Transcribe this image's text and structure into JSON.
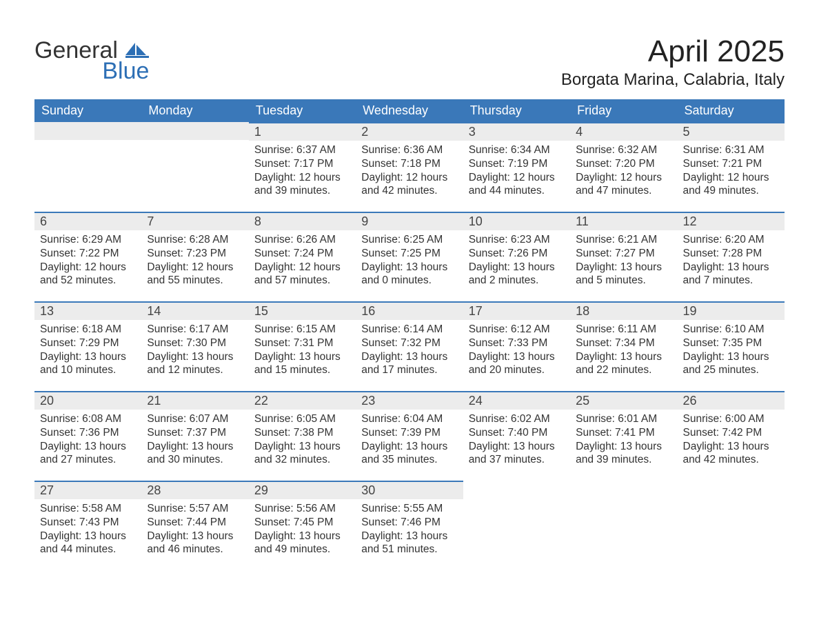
{
  "logo": {
    "word1": "General",
    "word2": "Blue"
  },
  "title": "April 2025",
  "location": "Borgata Marina, Calabria, Italy",
  "colors": {
    "header_bg": "#3a78b9",
    "header_text": "#ffffff",
    "daynum_bg": "#ececec",
    "row_border": "#3a78b9",
    "body_text": "#333333",
    "page_bg": "#ffffff",
    "logo_blue": "#2d6fb5"
  },
  "day_headers": [
    "Sunday",
    "Monday",
    "Tuesday",
    "Wednesday",
    "Thursday",
    "Friday",
    "Saturday"
  ],
  "weeks": [
    [
      {
        "n": "",
        "sr": "",
        "ss": "",
        "dl": ""
      },
      {
        "n": "",
        "sr": "",
        "ss": "",
        "dl": ""
      },
      {
        "n": "1",
        "sr": "Sunrise: 6:37 AM",
        "ss": "Sunset: 7:17 PM",
        "dl": "Daylight: 12 hours and 39 minutes."
      },
      {
        "n": "2",
        "sr": "Sunrise: 6:36 AM",
        "ss": "Sunset: 7:18 PM",
        "dl": "Daylight: 12 hours and 42 minutes."
      },
      {
        "n": "3",
        "sr": "Sunrise: 6:34 AM",
        "ss": "Sunset: 7:19 PM",
        "dl": "Daylight: 12 hours and 44 minutes."
      },
      {
        "n": "4",
        "sr": "Sunrise: 6:32 AM",
        "ss": "Sunset: 7:20 PM",
        "dl": "Daylight: 12 hours and 47 minutes."
      },
      {
        "n": "5",
        "sr": "Sunrise: 6:31 AM",
        "ss": "Sunset: 7:21 PM",
        "dl": "Daylight: 12 hours and 49 minutes."
      }
    ],
    [
      {
        "n": "6",
        "sr": "Sunrise: 6:29 AM",
        "ss": "Sunset: 7:22 PM",
        "dl": "Daylight: 12 hours and 52 minutes."
      },
      {
        "n": "7",
        "sr": "Sunrise: 6:28 AM",
        "ss": "Sunset: 7:23 PM",
        "dl": "Daylight: 12 hours and 55 minutes."
      },
      {
        "n": "8",
        "sr": "Sunrise: 6:26 AM",
        "ss": "Sunset: 7:24 PM",
        "dl": "Daylight: 12 hours and 57 minutes."
      },
      {
        "n": "9",
        "sr": "Sunrise: 6:25 AM",
        "ss": "Sunset: 7:25 PM",
        "dl": "Daylight: 13 hours and 0 minutes."
      },
      {
        "n": "10",
        "sr": "Sunrise: 6:23 AM",
        "ss": "Sunset: 7:26 PM",
        "dl": "Daylight: 13 hours and 2 minutes."
      },
      {
        "n": "11",
        "sr": "Sunrise: 6:21 AM",
        "ss": "Sunset: 7:27 PM",
        "dl": "Daylight: 13 hours and 5 minutes."
      },
      {
        "n": "12",
        "sr": "Sunrise: 6:20 AM",
        "ss": "Sunset: 7:28 PM",
        "dl": "Daylight: 13 hours and 7 minutes."
      }
    ],
    [
      {
        "n": "13",
        "sr": "Sunrise: 6:18 AM",
        "ss": "Sunset: 7:29 PM",
        "dl": "Daylight: 13 hours and 10 minutes."
      },
      {
        "n": "14",
        "sr": "Sunrise: 6:17 AM",
        "ss": "Sunset: 7:30 PM",
        "dl": "Daylight: 13 hours and 12 minutes."
      },
      {
        "n": "15",
        "sr": "Sunrise: 6:15 AM",
        "ss": "Sunset: 7:31 PM",
        "dl": "Daylight: 13 hours and 15 minutes."
      },
      {
        "n": "16",
        "sr": "Sunrise: 6:14 AM",
        "ss": "Sunset: 7:32 PM",
        "dl": "Daylight: 13 hours and 17 minutes."
      },
      {
        "n": "17",
        "sr": "Sunrise: 6:12 AM",
        "ss": "Sunset: 7:33 PM",
        "dl": "Daylight: 13 hours and 20 minutes."
      },
      {
        "n": "18",
        "sr": "Sunrise: 6:11 AM",
        "ss": "Sunset: 7:34 PM",
        "dl": "Daylight: 13 hours and 22 minutes."
      },
      {
        "n": "19",
        "sr": "Sunrise: 6:10 AM",
        "ss": "Sunset: 7:35 PM",
        "dl": "Daylight: 13 hours and 25 minutes."
      }
    ],
    [
      {
        "n": "20",
        "sr": "Sunrise: 6:08 AM",
        "ss": "Sunset: 7:36 PM",
        "dl": "Daylight: 13 hours and 27 minutes."
      },
      {
        "n": "21",
        "sr": "Sunrise: 6:07 AM",
        "ss": "Sunset: 7:37 PM",
        "dl": "Daylight: 13 hours and 30 minutes."
      },
      {
        "n": "22",
        "sr": "Sunrise: 6:05 AM",
        "ss": "Sunset: 7:38 PM",
        "dl": "Daylight: 13 hours and 32 minutes."
      },
      {
        "n": "23",
        "sr": "Sunrise: 6:04 AM",
        "ss": "Sunset: 7:39 PM",
        "dl": "Daylight: 13 hours and 35 minutes."
      },
      {
        "n": "24",
        "sr": "Sunrise: 6:02 AM",
        "ss": "Sunset: 7:40 PM",
        "dl": "Daylight: 13 hours and 37 minutes."
      },
      {
        "n": "25",
        "sr": "Sunrise: 6:01 AM",
        "ss": "Sunset: 7:41 PM",
        "dl": "Daylight: 13 hours and 39 minutes."
      },
      {
        "n": "26",
        "sr": "Sunrise: 6:00 AM",
        "ss": "Sunset: 7:42 PM",
        "dl": "Daylight: 13 hours and 42 minutes."
      }
    ],
    [
      {
        "n": "27",
        "sr": "Sunrise: 5:58 AM",
        "ss": "Sunset: 7:43 PM",
        "dl": "Daylight: 13 hours and 44 minutes."
      },
      {
        "n": "28",
        "sr": "Sunrise: 5:57 AM",
        "ss": "Sunset: 7:44 PM",
        "dl": "Daylight: 13 hours and 46 minutes."
      },
      {
        "n": "29",
        "sr": "Sunrise: 5:56 AM",
        "ss": "Sunset: 7:45 PM",
        "dl": "Daylight: 13 hours and 49 minutes."
      },
      {
        "n": "30",
        "sr": "Sunrise: 5:55 AM",
        "ss": "Sunset: 7:46 PM",
        "dl": "Daylight: 13 hours and 51 minutes."
      },
      {
        "n": "",
        "sr": "",
        "ss": "",
        "dl": ""
      },
      {
        "n": "",
        "sr": "",
        "ss": "",
        "dl": ""
      },
      {
        "n": "",
        "sr": "",
        "ss": "",
        "dl": ""
      }
    ]
  ]
}
